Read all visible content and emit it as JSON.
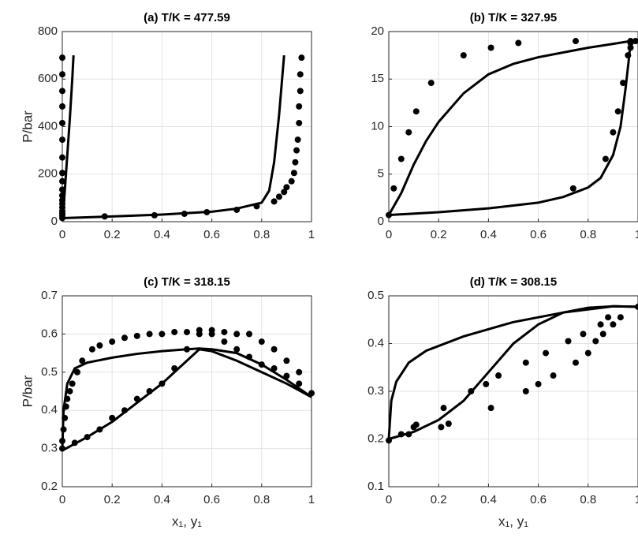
{
  "chart_data": [
    {
      "type": "line",
      "title": "(a) T/K = 477.59",
      "ylabel": "P/bar",
      "xlim": [
        0,
        1
      ],
      "ylim": [
        0,
        800
      ],
      "xticks": [
        0,
        0.2,
        0.4,
        0.6,
        0.8,
        1
      ],
      "yticks": [
        0,
        200,
        400,
        600,
        800
      ],
      "grid": true,
      "series": [
        {
          "style": "line",
          "color": "#000000",
          "x": [
            0,
            0.005,
            0.01,
            0.02,
            0.03,
            0.04,
            0.045
          ],
          "values": [
            15,
            60,
            130,
            280,
            430,
            600,
            700
          ]
        },
        {
          "style": "line",
          "color": "#000000",
          "x": [
            0,
            0.2,
            0.4,
            0.6,
            0.7,
            0.8,
            0.83,
            0.85,
            0.87,
            0.89
          ],
          "values": [
            15,
            22,
            30,
            42,
            55,
            80,
            130,
            250,
            450,
            700
          ]
        },
        {
          "style": "markers",
          "color": "#000000",
          "x": [
            0,
            0,
            0,
            0,
            0,
            0,
            0,
            0,
            0,
            0,
            0,
            0,
            0,
            0,
            0,
            0,
            0,
            0,
            0.17,
            0.37,
            0.49,
            0.58,
            0.7,
            0.78,
            0.85,
            0.87,
            0.89,
            0.9,
            0.92,
            0.93,
            0.935,
            0.94,
            0.945,
            0.95,
            0.95,
            0.955,
            0.955,
            0.96
          ],
          "values": [
            15,
            25,
            35,
            45,
            60,
            75,
            90,
            110,
            135,
            170,
            205,
            270,
            345,
            415,
            485,
            550,
            620,
            690,
            22,
            27,
            33,
            40,
            50,
            65,
            85,
            105,
            125,
            145,
            170,
            205,
            250,
            300,
            345,
            415,
            485,
            550,
            620,
            690
          ]
        }
      ]
    },
    {
      "type": "line",
      "title": "(b) T/K = 327.95",
      "xlim": [
        0,
        1
      ],
      "ylim": [
        0,
        20
      ],
      "xticks": [
        0,
        0.2,
        0.4,
        0.6,
        0.8,
        1
      ],
      "yticks": [
        0,
        5,
        10,
        15,
        20
      ],
      "grid": true,
      "series": [
        {
          "style": "line",
          "color": "#000000",
          "x": [
            0,
            0.05,
            0.1,
            0.15,
            0.2,
            0.3,
            0.4,
            0.5,
            0.6,
            0.7,
            0.8,
            0.9,
            0.97
          ],
          "values": [
            0.7,
            3,
            6,
            8.5,
            10.5,
            13.5,
            15.5,
            16.6,
            17.3,
            17.8,
            18.3,
            18.7,
            19
          ]
        },
        {
          "style": "line",
          "color": "#000000",
          "x": [
            0,
            0.2,
            0.4,
            0.6,
            0.7,
            0.8,
            0.85,
            0.9,
            0.93,
            0.95,
            0.965,
            0.97
          ],
          "values": [
            0.7,
            1,
            1.4,
            2,
            2.6,
            3.6,
            4.6,
            7,
            10,
            14,
            17.5,
            19
          ]
        },
        {
          "style": "markers",
          "color": "#000000",
          "x": [
            0,
            0.02,
            0.05,
            0.08,
            0.11,
            0.17,
            0.3,
            0.41,
            0.52,
            0.75,
            0.74,
            0.87,
            0.9,
            0.92,
            0.94,
            0.96,
            0.97,
            0.97,
            0.97,
            0.99
          ],
          "values": [
            0.7,
            3.5,
            6.6,
            9.4,
            11.6,
            14.6,
            17.5,
            18.3,
            18.8,
            19,
            3.5,
            6.6,
            9.4,
            11.6,
            14.6,
            17.5,
            18.3,
            18.8,
            19,
            19
          ]
        }
      ]
    },
    {
      "type": "line",
      "title": "(c) T/K = 318.15",
      "ylabel": "P/bar",
      "xlabel": "x₁, y₁",
      "xlim": [
        0,
        1
      ],
      "ylim": [
        0.2,
        0.7
      ],
      "xticks": [
        0,
        0.2,
        0.4,
        0.6,
        0.8,
        1
      ],
      "yticks": [
        0.2,
        0.3,
        0.4,
        0.5,
        0.6,
        0.7
      ],
      "grid": true,
      "series": [
        {
          "style": "line",
          "color": "#000000",
          "x": [
            0,
            0.005,
            0.02,
            0.05,
            0.1,
            0.2,
            0.3,
            0.4,
            0.5,
            0.55,
            0.6,
            0.7,
            0.8,
            0.9,
            1
          ],
          "values": [
            0.3,
            0.4,
            0.47,
            0.51,
            0.525,
            0.538,
            0.548,
            0.555,
            0.56,
            0.562,
            0.56,
            0.55,
            0.52,
            0.48,
            0.435
          ]
        },
        {
          "style": "line",
          "color": "#000000",
          "x": [
            0,
            0.1,
            0.2,
            0.3,
            0.4,
            0.5,
            0.55,
            0.6,
            0.7,
            0.8,
            0.9,
            1
          ],
          "values": [
            0.295,
            0.33,
            0.37,
            0.42,
            0.47,
            0.53,
            0.56,
            0.555,
            0.53,
            0.5,
            0.47,
            0.435
          ]
        },
        {
          "style": "markers",
          "color": "#000000",
          "x": [
            0,
            0.005,
            0.01,
            0.015,
            0.02,
            0.03,
            0.04,
            0.06,
            0.08,
            0.12,
            0.15,
            0.2,
            0.25,
            0.3,
            0.35,
            0.4,
            0.45,
            0.5,
            0.55,
            0.6,
            0.65,
            0.7,
            0.75,
            0.8,
            0.85,
            0.9,
            0.95,
            1,
            0,
            0.05,
            0.1,
            0.15,
            0.2,
            0.25,
            0.3,
            0.35,
            0.4,
            0.45,
            0.5,
            0.55,
            0.6,
            0.65,
            0.7,
            0.75,
            0.8,
            0.85,
            0.9,
            0.95
          ],
          "values": [
            0.32,
            0.35,
            0.38,
            0.41,
            0.43,
            0.45,
            0.47,
            0.5,
            0.53,
            0.56,
            0.57,
            0.58,
            0.59,
            0.595,
            0.6,
            0.6,
            0.605,
            0.605,
            0.61,
            0.61,
            0.605,
            0.6,
            0.6,
            0.58,
            0.56,
            0.53,
            0.5,
            0.445,
            0.3,
            0.315,
            0.33,
            0.35,
            0.38,
            0.4,
            0.43,
            0.45,
            0.47,
            0.51,
            0.56,
            0.6,
            0.6,
            0.58,
            0.56,
            0.54,
            0.52,
            0.51,
            0.49,
            0.47
          ]
        }
      ]
    },
    {
      "type": "line",
      "title": "(d) T/K = 308.15",
      "xlabel": "x₁, y₁",
      "xlim": [
        0,
        1
      ],
      "ylim": [
        0.1,
        0.5
      ],
      "xticks": [
        0,
        0.2,
        0.4,
        0.6,
        0.8,
        1
      ],
      "yticks": [
        0.1,
        0.2,
        0.3,
        0.4,
        0.5
      ],
      "grid": true,
      "series": [
        {
          "style": "line",
          "color": "#000000",
          "x": [
            0,
            0.01,
            0.03,
            0.08,
            0.15,
            0.3,
            0.5,
            0.7,
            0.9,
            1
          ],
          "values": [
            0.2,
            0.28,
            0.32,
            0.36,
            0.385,
            0.415,
            0.445,
            0.465,
            0.478,
            0.477
          ]
        },
        {
          "style": "line",
          "color": "#000000",
          "x": [
            0,
            0.1,
            0.2,
            0.3,
            0.4,
            0.5,
            0.6,
            0.7,
            0.8,
            0.9,
            1
          ],
          "values": [
            0.2,
            0.215,
            0.24,
            0.28,
            0.34,
            0.4,
            0.44,
            0.465,
            0.475,
            0.478,
            0.477
          ]
        },
        {
          "style": "markers",
          "color": "#000000",
          "x": [
            0,
            0.05,
            0.08,
            0.1,
            0.11,
            0.21,
            0.22,
            0.24,
            0.33,
            0.39,
            0.41,
            0.44,
            0.55,
            0.55,
            0.6,
            0.63,
            0.66,
            0.72,
            0.75,
            0.78,
            0.8,
            0.83,
            0.85,
            0.86,
            0.88,
            0.9,
            0.93,
            1
          ],
          "values": [
            0.197,
            0.21,
            0.21,
            0.225,
            0.23,
            0.225,
            0.265,
            0.232,
            0.3,
            0.315,
            0.265,
            0.333,
            0.36,
            0.3,
            0.315,
            0.38,
            0.333,
            0.405,
            0.36,
            0.42,
            0.38,
            0.405,
            0.44,
            0.42,
            0.455,
            0.44,
            0.455,
            0.477
          ]
        }
      ]
    }
  ]
}
